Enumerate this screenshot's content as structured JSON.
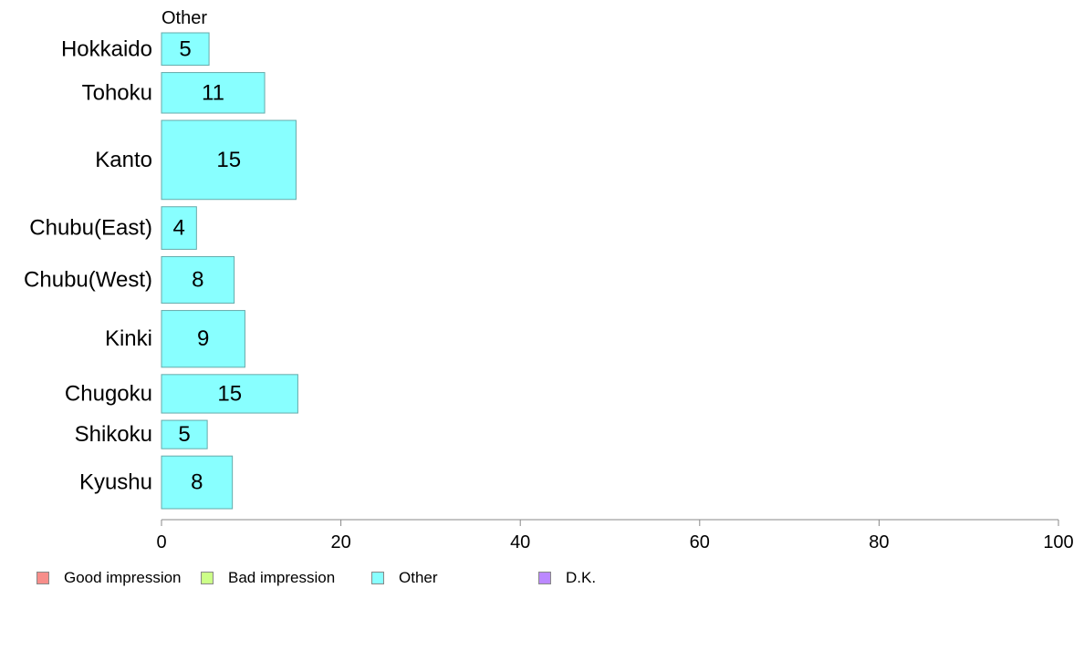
{
  "chart_data": {
    "type": "bar",
    "orientation": "horizontal",
    "panel_title": "Other",
    "categories": [
      "Hokkaido",
      "Tohoku",
      "Kanto",
      "Chubu(East)",
      "Chubu(West)",
      "Kinki",
      "Chugoku",
      "Shikoku",
      "Kyushu"
    ],
    "values": [
      5,
      11,
      15,
      4,
      8,
      9,
      15,
      5,
      8
    ],
    "bar_widths": [
      5.3,
      11.5,
      15,
      3.9,
      8.1,
      9.3,
      15.2,
      5.1,
      7.9
    ],
    "relative_bar_heights": [
      0.8,
      1.0,
      1.95,
      1.05,
      1.15,
      1.4,
      0.95,
      0.7,
      1.3
    ],
    "bar_color": "#88ffff",
    "bar_edge_color": "#66aaaa",
    "xlim": [
      0,
      100
    ],
    "xticks": [
      0,
      20,
      40,
      60,
      80,
      100
    ],
    "grid": false,
    "legend_position": "bottom-left",
    "legend": [
      {
        "label": "Good impression",
        "color": "#f78e8a"
      },
      {
        "label": "Bad impression",
        "color": "#ccff88"
      },
      {
        "label": "Other",
        "color": "#88ffff"
      },
      {
        "label": "D.K.",
        "color": "#bb88ff"
      }
    ]
  }
}
